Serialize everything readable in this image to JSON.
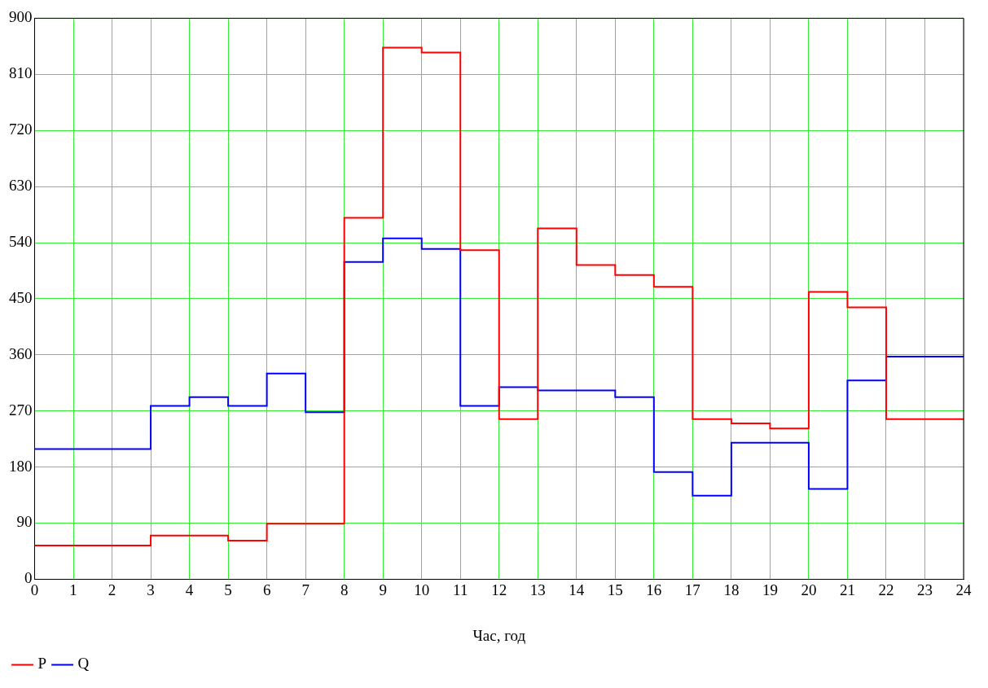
{
  "chart_data": {
    "type": "step",
    "xlabel": "Час, год",
    "x": [
      0,
      1,
      2,
      3,
      4,
      5,
      6,
      7,
      8,
      9,
      10,
      11,
      12,
      13,
      14,
      15,
      16,
      17,
      18,
      19,
      20,
      21,
      22,
      23,
      24
    ],
    "series": [
      {
        "name": "P",
        "color": "#ff0000",
        "values": [
          54,
          54,
          54,
          70,
          70,
          62,
          89,
          89,
          580,
          853,
          845,
          528,
          257,
          563,
          504,
          488,
          469,
          257,
          250,
          242,
          461,
          436,
          257,
          257,
          257
        ]
      },
      {
        "name": "Q",
        "color": "#0000ff",
        "values": [
          209,
          209,
          209,
          278,
          292,
          278,
          330,
          268,
          509,
          547,
          530,
          278,
          308,
          303,
          303,
          292,
          172,
          134,
          219,
          219,
          145,
          319,
          357,
          357,
          357
        ]
      }
    ],
    "xlim": [
      0,
      24
    ],
    "xticks": [
      0,
      1,
      2,
      3,
      4,
      5,
      6,
      7,
      8,
      9,
      10,
      11,
      12,
      13,
      14,
      15,
      16,
      17,
      18,
      19,
      20,
      21,
      22,
      23,
      24
    ],
    "ylim": [
      0,
      900
    ],
    "yticks": [
      0,
      90,
      180,
      270,
      360,
      450,
      540,
      630,
      720,
      810,
      900
    ],
    "grid": true,
    "legend": "bottom left"
  }
}
